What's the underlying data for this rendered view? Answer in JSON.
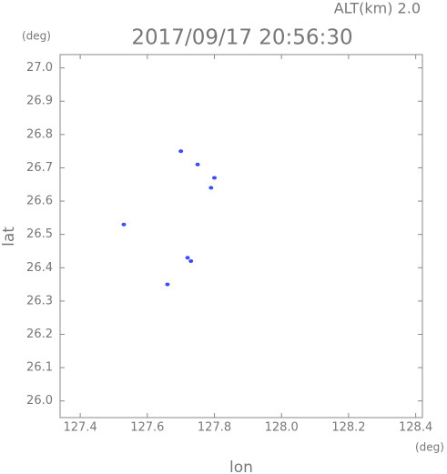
{
  "chart_data": {
    "type": "scatter",
    "title": "2017/09/17 20:56:30",
    "annotation": "ALT(km) 2.0",
    "x_label": "lon",
    "y_label": "lat",
    "x_unit": "(deg)",
    "y_unit": "(deg)",
    "color": "#3b4ff0",
    "x": [
      127.53,
      127.66,
      127.72,
      127.73,
      127.7,
      127.75,
      127.79,
      127.8
    ],
    "values": [
      26.53,
      26.35,
      26.43,
      26.42,
      26.75,
      26.71,
      26.64,
      26.67
    ],
    "xlim": [
      127.34,
      128.42
    ],
    "ylim": [
      25.95,
      27.04
    ],
    "xticks": [
      127.4,
      127.6,
      127.8,
      {
        "value": 128,
        "label": "128.0"
      },
      128.2,
      128.4
    ],
    "yticks": [
      {
        "value": 26,
        "label": "26.0"
      },
      26.1,
      26.2,
      26.3,
      26.4,
      26.5,
      26.6,
      26.7,
      26.8,
      26.9,
      {
        "value": 27,
        "label": "27.0"
      }
    ]
  }
}
